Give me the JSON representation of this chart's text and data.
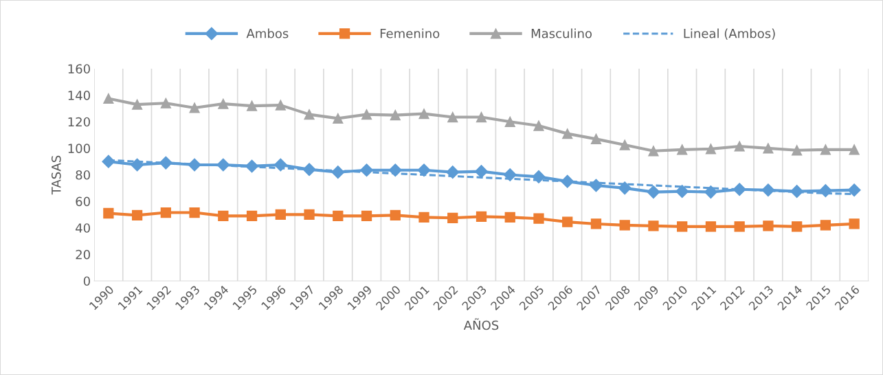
{
  "chart_data": {
    "type": "line",
    "xlabel": "AÑOS",
    "ylabel": "TASAS",
    "categories": [
      "1990",
      "1991",
      "1992",
      "1993",
      "1994",
      "1995",
      "1996",
      "1997",
      "1998",
      "1999",
      "2000",
      "2001",
      "2002",
      "2003",
      "2004",
      "2005",
      "2006",
      "2007",
      "2008",
      "2009",
      "2010",
      "2011",
      "2012",
      "2013",
      "2014",
      "2015",
      "2016"
    ],
    "series": [
      {
        "name": "Ambos",
        "color": "#5b9bd5",
        "marker": "diamond",
        "line_style": "solid",
        "values": [
          90,
          87.5,
          89,
          87.5,
          87.5,
          86.5,
          87.5,
          84,
          82,
          83.5,
          83.5,
          83.5,
          82,
          82.5,
          80,
          78.5,
          75,
          72,
          70,
          67,
          67.5,
          67,
          69,
          68.5,
          67.5,
          68,
          68.5
        ]
      },
      {
        "name": "Femenino",
        "color": "#ed7d31",
        "marker": "square",
        "line_style": "solid",
        "values": [
          51,
          49.5,
          51.5,
          51.5,
          49,
          49,
          50,
          50,
          49,
          49,
          49.5,
          48,
          47.5,
          48.5,
          48,
          47,
          44.5,
          43,
          42,
          41.5,
          41,
          41,
          41,
          41.5,
          41,
          42,
          43
        ]
      },
      {
        "name": "Masculino",
        "color": "#a5a5a5",
        "marker": "triangle",
        "line_style": "solid",
        "values": [
          137.5,
          133,
          134,
          130.5,
          133.5,
          132,
          132.5,
          125.5,
          122.5,
          125.5,
          125,
          126,
          123.5,
          123.5,
          120,
          117,
          111,
          107,
          102.5,
          98,
          99,
          99.5,
          101.5,
          100,
          98.5,
          99,
          99
        ]
      },
      {
        "name": "Lineal (Ambos)",
        "color": "#5b9bd5",
        "marker": "none",
        "line_style": "dashed",
        "values": [
          91,
          90,
          89,
          88,
          87,
          86,
          85,
          84,
          83,
          82,
          81,
          80,
          79,
          78,
          77,
          76,
          75,
          74,
          73,
          72,
          71,
          70,
          69,
          68,
          67,
          66,
          65.5
        ]
      }
    ],
    "ylim": [
      0,
      160
    ],
    "yticks": [
      0,
      20,
      40,
      60,
      80,
      100,
      120,
      140,
      160
    ],
    "grid": "x",
    "legend": "top"
  }
}
